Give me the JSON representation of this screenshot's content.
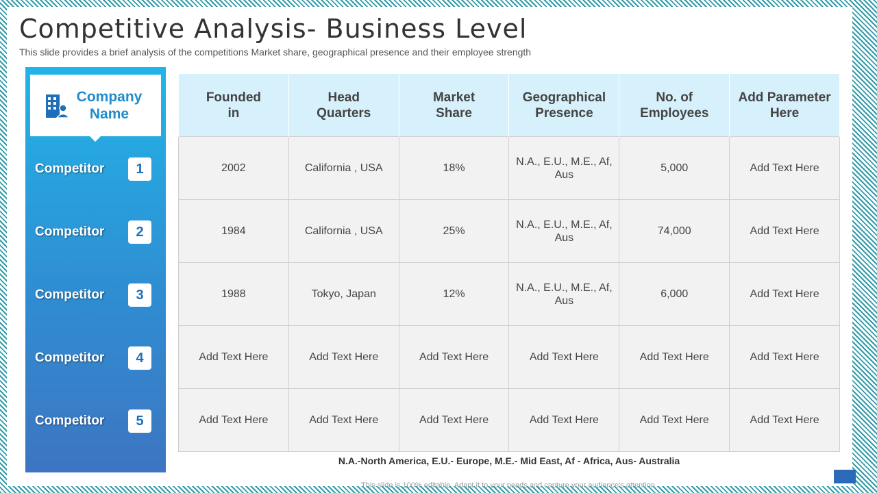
{
  "title": "Competitive Analysis- Business Level",
  "subtitle": "This slide provides a brief analysis of the competitions Market share, geographical presence and their employee strength",
  "side_panel": {
    "company_label": "Company Name",
    "company_icon": "building-user-icon",
    "competitors": [
      {
        "label": "Competitor",
        "number": "1"
      },
      {
        "label": "Competitor",
        "number": "2"
      },
      {
        "label": "Competitor",
        "number": "3"
      },
      {
        "label": "Competitor",
        "number": "4"
      },
      {
        "label": "Competitor",
        "number": "5"
      }
    ]
  },
  "table": {
    "headers": [
      "Founded\nin",
      "Head\nQuarters",
      "Market\nShare",
      "Geographical\nPresence",
      "No. of\nEmployees",
      "Add Parameter\nHere"
    ],
    "rows": [
      [
        "2002",
        "California , USA",
        "18%",
        "N.A., E.U., M.E., Af, Aus",
        "5,000",
        "Add Text Here"
      ],
      [
        "1984",
        "California , USA",
        "25%",
        "N.A., E.U., M.E., Af, Aus",
        "74,000",
        "Add Text Here"
      ],
      [
        "1988",
        "Tokyo, Japan",
        "12%",
        "N.A., E.U., M.E., Af, Aus",
        "6,000",
        "Add Text Here"
      ],
      [
        "Add Text Here",
        "Add Text Here",
        "Add Text Here",
        "Add Text Here",
        "Add Text Here",
        "Add Text Here"
      ],
      [
        "Add Text Here",
        "Add Text Here",
        "Add Text Here",
        "Add Text Here",
        "Add Text Here",
        "Add Text Here"
      ]
    ]
  },
  "legend": "N.A.-North America, E.U.- Europe, M.E.- Mid East, Af - Africa, Aus- Australia",
  "footer_note": "This slide is 100% editable. Adapt it to your needs and capture your audience's attention.",
  "colors": {
    "accent": "#1f8ccb",
    "header_fill": "#d6f1fb",
    "cell_fill": "#f2f2f2",
    "border_stripe": "#2f9aa8"
  }
}
